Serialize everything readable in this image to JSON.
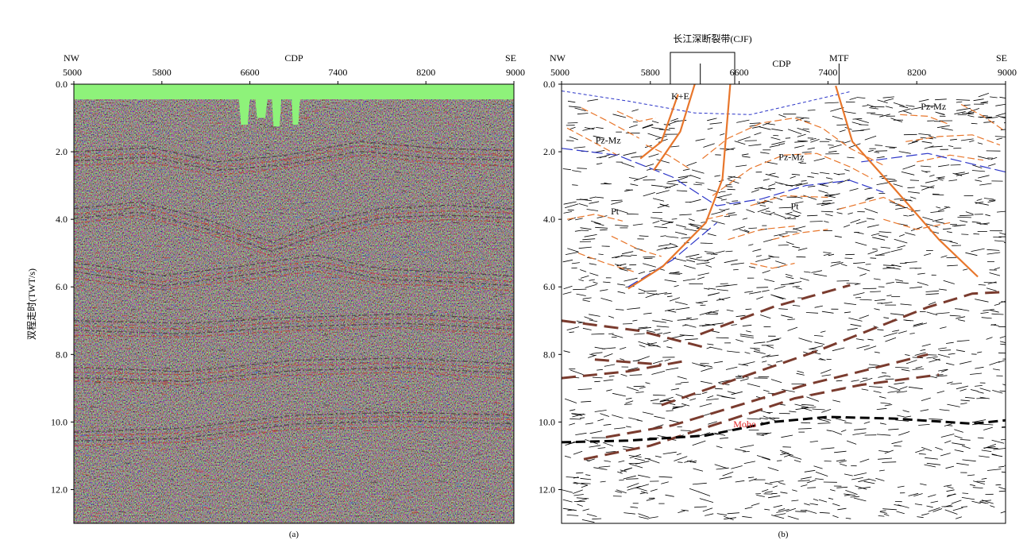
{
  "chart_data": [
    {
      "type": "heatmap",
      "panel_caption": "(a)",
      "x_top_left": "NW",
      "x_top_right": "SE",
      "xlabel": "CDP",
      "ylabel": "双程走时(TWT/s)",
      "xlim": [
        5000,
        9000
      ],
      "ylim": [
        13.0,
        0.0
      ],
      "x_ticks": [
        "5000",
        "5800",
        "6600",
        "7400",
        "8200",
        "9000"
      ],
      "y_ticks": [
        "0.0",
        "2.0",
        "4.0",
        "6.0",
        "8.0",
        "10.0",
        "12.0"
      ],
      "colors": {
        "background": "#8ef27a",
        "red": "#c0392b",
        "blue": "#3a7bd5",
        "dark": "#3a2d2d"
      },
      "top_mute": [
        [
          5000,
          0.45
        ],
        [
          6500,
          0.45
        ],
        [
          6520,
          1.2
        ],
        [
          6580,
          1.2
        ],
        [
          6600,
          0.45
        ],
        [
          6650,
          0.45
        ],
        [
          6665,
          1.0
        ],
        [
          6740,
          1.0
        ],
        [
          6760,
          0.45
        ],
        [
          6800,
          0.45
        ],
        [
          6815,
          1.25
        ],
        [
          6870,
          1.25
        ],
        [
          6885,
          0.45
        ],
        [
          6980,
          0.45
        ],
        [
          6990,
          1.2
        ],
        [
          7040,
          1.2
        ],
        [
          7055,
          0.45
        ],
        [
          9000,
          0.45
        ]
      ],
      "reflectors": [
        [
          [
            5000,
            2.2
          ],
          [
            5700,
            2.1
          ],
          [
            6300,
            2.5
          ],
          [
            6900,
            2.3
          ],
          [
            7600,
            1.9
          ],
          [
            8300,
            2.1
          ],
          [
            9000,
            2.2
          ]
        ],
        [
          [
            5000,
            3.9
          ],
          [
            5600,
            3.7
          ],
          [
            6200,
            4.2
          ],
          [
            6800,
            4.9
          ],
          [
            7300,
            4.3
          ],
          [
            7800,
            3.9
          ],
          [
            8400,
            3.8
          ],
          [
            9000,
            3.9
          ]
        ],
        [
          [
            5000,
            5.5
          ],
          [
            5800,
            5.9
          ],
          [
            6500,
            5.6
          ],
          [
            7200,
            5.3
          ],
          [
            7800,
            5.7
          ],
          [
            8500,
            5.8
          ],
          [
            9000,
            5.9
          ]
        ],
        [
          [
            5000,
            7.2
          ],
          [
            6000,
            7.3
          ],
          [
            7000,
            7.1
          ],
          [
            8000,
            7.0
          ],
          [
            9000,
            7.2
          ]
        ],
        [
          [
            5000,
            8.6
          ],
          [
            6000,
            8.7
          ],
          [
            7000,
            8.4
          ],
          [
            8000,
            8.3
          ],
          [
            9000,
            8.5
          ]
        ],
        [
          [
            5000,
            10.5
          ],
          [
            6000,
            10.4
          ],
          [
            7000,
            10.0
          ],
          [
            8000,
            9.9
          ],
          [
            9000,
            10.0
          ]
        ]
      ]
    },
    {
      "type": "line",
      "panel_caption": "(b)",
      "x_top_left": "NW",
      "x_top_right": "SE",
      "xlabel": "CDP",
      "xlim": [
        5000,
        9000
      ],
      "ylim": [
        13.0,
        0.0
      ],
      "x_ticks": [
        "5000",
        "5800",
        "6600",
        "7400",
        "8200",
        "9000"
      ],
      "y_ticks": [
        "0.0",
        "2.0",
        "4.0",
        "6.0",
        "8.0",
        "10.0",
        "12.0"
      ],
      "colors": {
        "fault": "#e8762b",
        "unit_boundary": "#2b35c8",
        "lower_crust": "#7a3b2e",
        "moho": "#000000",
        "moho_label": "#e02020",
        "short_event": "#000000"
      },
      "cjf_label": "长江深断裂带(CJF)",
      "cjf_bracket": [
        5980,
        6560
      ],
      "cjf_inner_tick": 6250,
      "mtf_label": "MTF",
      "mtf_x": 7500,
      "unit_labels": [
        {
          "text": "K+E",
          "x": 6070,
          "y": 0.45
        },
        {
          "text": "Pz-Mz",
          "x": 5420,
          "y": 1.75
        },
        {
          "text": "Pz-Mz",
          "x": 7070,
          "y": 2.25
        },
        {
          "text": "Pz-Mz",
          "x": 8350,
          "y": 0.75
        },
        {
          "text": "Pt",
          "x": 5480,
          "y": 3.85
        },
        {
          "text": "Pt",
          "x": 7100,
          "y": 3.7
        }
      ],
      "moho_label": "Moho",
      "moho_label_pos": [
        6650,
        10.15
      ],
      "moho_line": [
        [
          5000,
          10.6
        ],
        [
          5600,
          10.55
        ],
        [
          6300,
          10.4
        ],
        [
          6900,
          10.0
        ],
        [
          7400,
          9.85
        ],
        [
          8000,
          9.9
        ],
        [
          8700,
          10.05
        ],
        [
          9000,
          9.95
        ]
      ],
      "boundary_top": [
        [
          5000,
          0.2
        ],
        [
          5600,
          0.5
        ],
        [
          6200,
          0.85
        ],
        [
          6700,
          0.9
        ],
        [
          7100,
          0.6
        ],
        [
          7600,
          0.22
        ]
      ],
      "boundary_pt": [
        [
          5000,
          1.9
        ],
        [
          5500,
          2.1
        ],
        [
          6000,
          2.75
        ],
        [
          6400,
          3.6
        ],
        [
          6800,
          3.4
        ],
        [
          7200,
          3.0
        ],
        [
          7600,
          2.85
        ],
        [
          7900,
          3.2
        ]
      ],
      "boundary_right": [
        [
          7700,
          2.3
        ],
        [
          8300,
          2.05
        ],
        [
          9000,
          2.6
        ]
      ],
      "boundary_lower": [
        [
          5600,
          6.0
        ],
        [
          6000,
          5.2
        ],
        [
          6400,
          4.1
        ]
      ],
      "faults": [
        [
          [
            6200,
            0.0
          ],
          [
            6070,
            1.4
          ],
          [
            5830,
            2.55
          ]
        ],
        [
          [
            6050,
            0.3
          ],
          [
            5900,
            1.7
          ],
          [
            5710,
            2.2
          ]
        ],
        [
          [
            6520,
            0.0
          ],
          [
            6450,
            2.8
          ],
          [
            6300,
            4.1
          ],
          [
            5910,
            5.4
          ],
          [
            5600,
            6.05
          ]
        ],
        [
          [
            7470,
            0.05
          ],
          [
            7620,
            1.7
          ],
          [
            8000,
            3.1
          ],
          [
            8400,
            4.6
          ],
          [
            8750,
            5.7
          ]
        ]
      ],
      "lower_crust_reflectors": [
        [
          [
            5000,
            7.0
          ],
          [
            5700,
            7.3
          ],
          [
            6300,
            7.8
          ]
        ],
        [
          [
            6250,
            7.4
          ],
          [
            6900,
            6.6
          ],
          [
            7600,
            5.95
          ]
        ],
        [
          [
            5000,
            8.7
          ],
          [
            5600,
            8.5
          ],
          [
            6100,
            8.2
          ]
        ],
        [
          [
            5300,
            8.15
          ],
          [
            5900,
            8.3
          ]
        ],
        [
          [
            5400,
            10.45
          ],
          [
            6000,
            10.1
          ],
          [
            6700,
            9.4
          ],
          [
            7200,
            8.9
          ],
          [
            7700,
            8.5
          ],
          [
            8300,
            8.0
          ]
        ],
        [
          [
            5200,
            11.1
          ],
          [
            5800,
            10.7
          ],
          [
            6500,
            9.95
          ],
          [
            7100,
            9.3
          ],
          [
            7700,
            8.9
          ],
          [
            8400,
            8.6
          ]
        ],
        [
          [
            5900,
            9.5
          ],
          [
            6600,
            8.7
          ],
          [
            7300,
            7.9
          ],
          [
            7800,
            7.25
          ],
          [
            8300,
            6.6
          ],
          [
            8700,
            6.2
          ],
          [
            9000,
            6.15
          ]
        ]
      ],
      "orange_events": [
        [
          [
            5180,
            0.7
          ],
          [
            5420,
            1.1
          ],
          [
            5700,
            1.6
          ]
        ],
        [
          [
            5050,
            1.3
          ],
          [
            5280,
            1.7
          ],
          [
            5500,
            2.1
          ]
        ],
        [
          [
            5760,
            1.8
          ],
          [
            5960,
            2.1
          ],
          [
            6150,
            2.5
          ]
        ],
        [
          [
            6270,
            2.2
          ],
          [
            6500,
            1.6
          ],
          [
            6800,
            1.15
          ],
          [
            7100,
            1.0
          ],
          [
            7350,
            1.3
          ],
          [
            7600,
            1.9
          ],
          [
            7900,
            2.4
          ]
        ],
        [
          [
            6360,
            3.3
          ],
          [
            6700,
            2.5
          ],
          [
            7000,
            2.1
          ],
          [
            7300,
            2.05
          ],
          [
            7600,
            2.45
          ],
          [
            7800,
            2.8
          ]
        ],
        [
          [
            6700,
            3.6
          ],
          [
            7000,
            3.3
          ],
          [
            7400,
            3.35
          ]
        ],
        [
          [
            7500,
            3.7
          ],
          [
            7900,
            3.35
          ],
          [
            8200,
            3.8
          ]
        ],
        [
          [
            8050,
            0.9
          ],
          [
            8300,
            0.95
          ],
          [
            8500,
            1.2
          ]
        ],
        [
          [
            8100,
            1.7
          ],
          [
            8400,
            1.55
          ],
          [
            8700,
            1.5
          ],
          [
            8950,
            1.8
          ]
        ],
        [
          [
            8200,
            2.3
          ],
          [
            8500,
            2.1
          ],
          [
            8800,
            2.25
          ]
        ],
        [
          [
            5050,
            4.0
          ],
          [
            5300,
            3.85
          ],
          [
            5550,
            4.05
          ]
        ],
        [
          [
            5450,
            4.5
          ],
          [
            5700,
            4.9
          ],
          [
            5900,
            5.1
          ]
        ],
        [
          [
            5150,
            5.0
          ],
          [
            5400,
            5.3
          ],
          [
            5650,
            5.55
          ]
        ],
        [
          [
            6500,
            4.6
          ],
          [
            6800,
            4.3
          ],
          [
            7100,
            4.2
          ]
        ],
        [
          [
            6700,
            5.3
          ],
          [
            6900,
            5.45
          ],
          [
            7100,
            5.3
          ]
        ],
        [
          [
            6900,
            4.6
          ],
          [
            7150,
            4.4
          ],
          [
            7400,
            4.3
          ]
        ],
        [
          [
            7900,
            4.0
          ],
          [
            8200,
            4.3
          ],
          [
            8500,
            4.1
          ]
        ],
        [
          [
            8600,
            0.6
          ],
          [
            8800,
            0.95
          ],
          [
            9000,
            1.4
          ]
        ],
        [
          [
            5500,
            0.8
          ],
          [
            5700,
            1.1
          ],
          [
            5850,
            1.0
          ]
        ],
        [
          [
            6300,
            4.0
          ],
          [
            6500,
            3.85
          ]
        ]
      ]
    }
  ]
}
